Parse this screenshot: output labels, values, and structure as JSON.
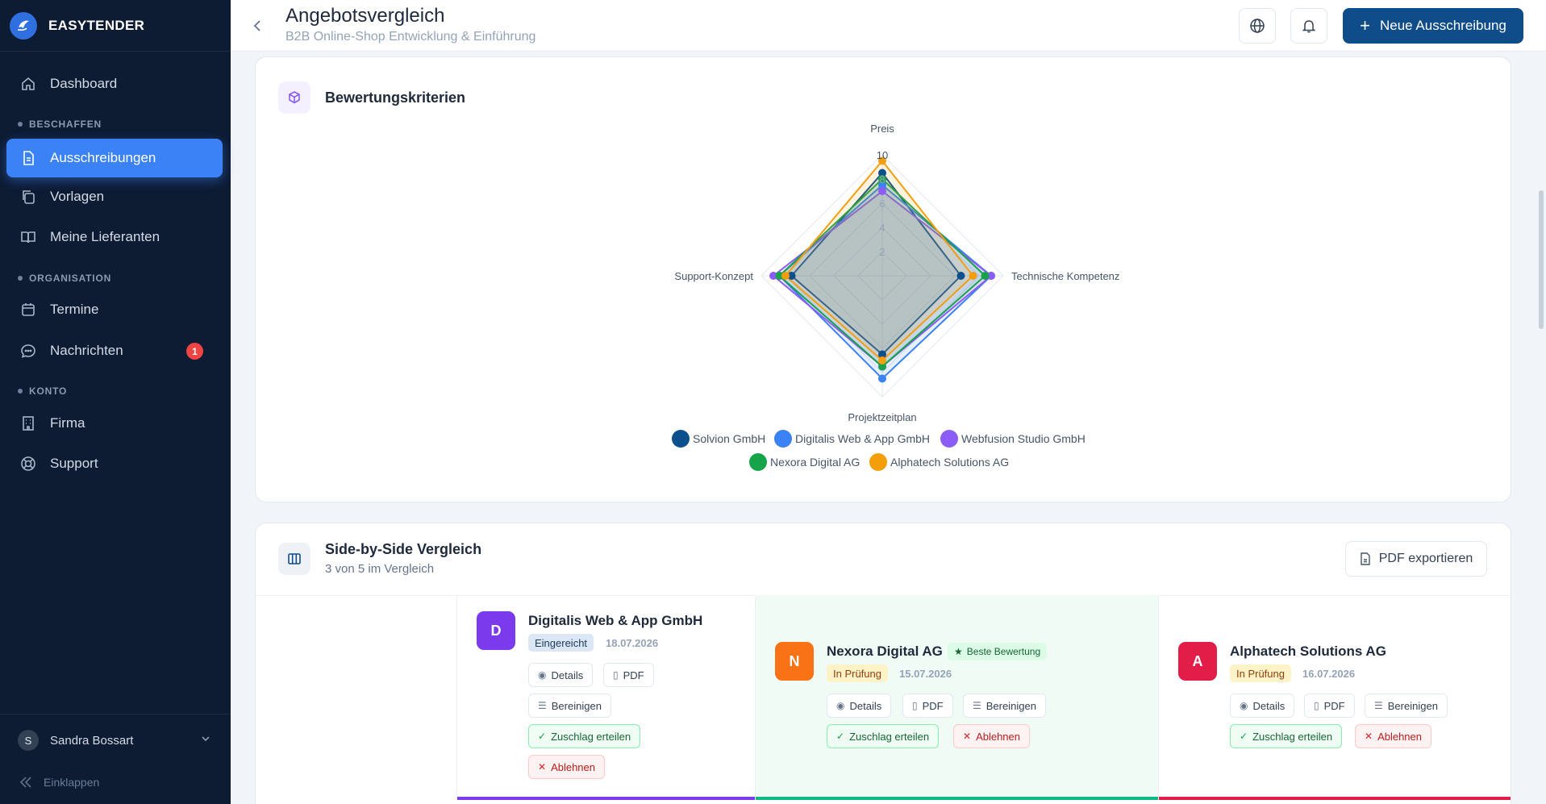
{
  "app": {
    "brand": "EASYTENDER"
  },
  "header": {
    "title": "Angebotsvergleich",
    "subtitle": "B2B Online-Shop Entwicklung & Einführung",
    "new_button": "Neue Ausschreibung"
  },
  "sidebar": {
    "dashboard": "Dashboard",
    "section_procure": "BESCHAFFEN",
    "tenders": "Ausschreibungen",
    "templates": "Vorlagen",
    "suppliers": "Meine Lieferanten",
    "section_org": "ORGANISATION",
    "appointments": "Termine",
    "messages": "Nachrichten",
    "messages_badge": "1",
    "section_account": "KONTO",
    "company": "Firma",
    "support": "Support",
    "user_initial": "S",
    "user_name": "Sandra Bossart",
    "collapse": "Einklappen"
  },
  "criteria_card": {
    "title": "Bewertungskriterien"
  },
  "chart_data": {
    "type": "radar",
    "axes": [
      "Preis",
      "Technische Kompetenz",
      "Projektzeitplan",
      "Support-Konzept"
    ],
    "rmax": 10,
    "ticks": [
      "2",
      "4",
      "6",
      "8",
      "10"
    ],
    "series": [
      {
        "name": "Solvion GmbH",
        "color": "#0b4f8c",
        "values": [
          8.5,
          6.5,
          6.5,
          7.5
        ]
      },
      {
        "name": "Digitalis Web & App GmbH",
        "color": "#3b82f6",
        "values": [
          7.5,
          9.0,
          8.5,
          8.5
        ]
      },
      {
        "name": "Webfusion Studio GmbH",
        "color": "#8b5cf6",
        "values": [
          7.0,
          9.0,
          7.5,
          9.0
        ]
      },
      {
        "name": "Nexora Digital AG",
        "color": "#16a34a",
        "values": [
          8.0,
          8.5,
          7.5,
          8.5
        ]
      },
      {
        "name": "Alphatech Solutions AG",
        "color": "#f59e0b",
        "values": [
          9.5,
          7.5,
          7.0,
          8.0
        ]
      }
    ]
  },
  "comparison": {
    "title": "Side-by-Side Vergleich",
    "subtitle": "3 von 5 im Vergleich",
    "export": "PDF exportieren",
    "vendors": [
      {
        "initial": "D",
        "name": "Digitalis Web & App GmbH",
        "status": "Eingereicht",
        "date": "18.07.2026",
        "details": "Details",
        "pdf": "PDF",
        "clean": "Bereinigen",
        "accept": "Zuschlag erteilen",
        "reject": "Ablehnen",
        "color": "#7c3aed"
      },
      {
        "initial": "N",
        "name": "Nexora Digital AG",
        "best": "Beste Bewertung",
        "status": "In Prüfung",
        "date": "15.07.2026",
        "details": "Details",
        "pdf": "PDF",
        "clean": "Bereinigen",
        "accept": "Zuschlag erteilen",
        "reject": "Ablehnen",
        "color": "#f97316"
      },
      {
        "initial": "A",
        "name": "Alphatech Solutions AG",
        "status": "In Prüfung",
        "date": "16.07.2026",
        "details": "Details",
        "pdf": "PDF",
        "clean": "Bereinigen",
        "accept": "Zuschlag erteilen",
        "reject": "Ablehnen",
        "color": "#e11d48"
      }
    ]
  }
}
